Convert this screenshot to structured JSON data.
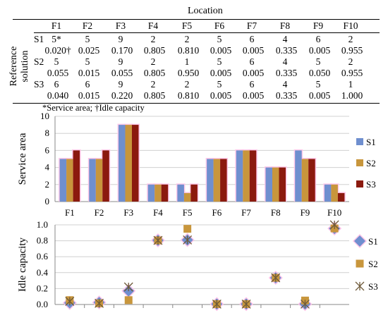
{
  "table": {
    "location_header": "Location",
    "reference_label_line1": "Reference",
    "reference_label_line2": "solution",
    "columns": [
      "F1",
      "F2",
      "F3",
      "F4",
      "F5",
      "F6",
      "F7",
      "F8",
      "F9",
      "F10"
    ],
    "rows": [
      {
        "label": "S1",
        "service": [
          "5*",
          "5",
          "9",
          "2",
          "2",
          "5",
          "6",
          "4",
          "6",
          "2"
        ],
        "idle": [
          "0.020†",
          "0.025",
          "0.170",
          "0.805",
          "0.810",
          "0.005",
          "0.005",
          "0.335",
          "0.005",
          "0.955"
        ]
      },
      {
        "label": "S2",
        "service": [
          "5",
          "5",
          "9",
          "2",
          "1",
          "5",
          "6",
          "4",
          "5",
          "2"
        ],
        "idle": [
          "0.055",
          "0.015",
          "0.055",
          "0.805",
          "0.950",
          "0.005",
          "0.005",
          "0.335",
          "0.050",
          "0.955"
        ]
      },
      {
        "label": "S3",
        "service": [
          "6",
          "6",
          "9",
          "2",
          "2",
          "5",
          "6",
          "4",
          "5",
          "1"
        ],
        "idle": [
          "0.040",
          "0.015",
          "0.220",
          "0.805",
          "0.810",
          "0.005",
          "0.005",
          "0.335",
          "0.005",
          "1.000"
        ]
      }
    ],
    "footnote": "*Service area; †Idle capacity"
  },
  "chart_data": [
    {
      "type": "bar",
      "ylabel": "Service area",
      "categories": [
        "F1",
        "F2",
        "F3",
        "F4",
        "F5",
        "F6",
        "F7",
        "F8",
        "F9",
        "F10"
      ],
      "ylim": [
        0,
        10
      ],
      "yticks": [
        "0",
        "2",
        "4",
        "6",
        "8",
        "10"
      ],
      "legend_position": "right",
      "series": [
        {
          "name": "S1",
          "color": "#6f8fcf",
          "values": [
            5,
            5,
            9,
            2,
            2,
            5,
            6,
            4,
            6,
            2
          ]
        },
        {
          "name": "S2",
          "color": "#c8963c",
          "values": [
            5,
            5,
            9,
            2,
            1,
            5,
            6,
            4,
            5,
            2
          ]
        },
        {
          "name": "S3",
          "color": "#8b1a0e",
          "values": [
            6,
            6,
            9,
            2,
            2,
            5,
            6,
            4,
            5,
            1
          ]
        }
      ]
    },
    {
      "type": "scatter",
      "ylabel": "Idle capacity",
      "categories": [
        "F1",
        "F2",
        "F3",
        "F4",
        "F5",
        "F6",
        "F7",
        "F8",
        "F9",
        "F10"
      ],
      "ylim": [
        0,
        1.0
      ],
      "yticks": [
        "0.0",
        "0.2",
        "0.4",
        "0.6",
        "0.8",
        "1.0"
      ],
      "legend_position": "right",
      "series": [
        {
          "name": "S1",
          "marker": "diamond",
          "color": "#6f8fcf",
          "values": [
            0.02,
            0.025,
            0.17,
            0.805,
            0.81,
            0.005,
            0.005,
            0.335,
            0.005,
            0.955
          ]
        },
        {
          "name": "S2",
          "marker": "square",
          "color": "#c8963c",
          "values": [
            0.055,
            0.015,
            0.055,
            0.805,
            0.95,
            0.005,
            0.005,
            0.335,
            0.05,
            0.955
          ]
        },
        {
          "name": "S3",
          "marker": "x",
          "color": "#6e5a3a",
          "values": [
            0.04,
            0.015,
            0.22,
            0.805,
            0.81,
            0.005,
            0.005,
            0.335,
            0.005,
            1.0
          ]
        }
      ]
    }
  ]
}
